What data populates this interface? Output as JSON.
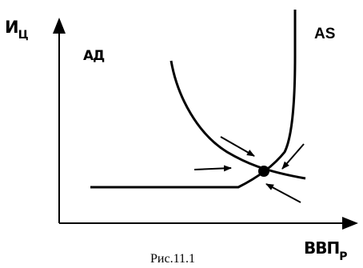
{
  "labels": {
    "y_axis_main": "И",
    "y_axis_sub": "Ц",
    "x_axis_main": "ВВП",
    "x_axis_sub": "Р",
    "ad_curve": "АД",
    "as_curve": "AS",
    "caption": "Рис.11.1"
  },
  "colors": {
    "ink": "#000000",
    "background": "#ffffff"
  }
}
